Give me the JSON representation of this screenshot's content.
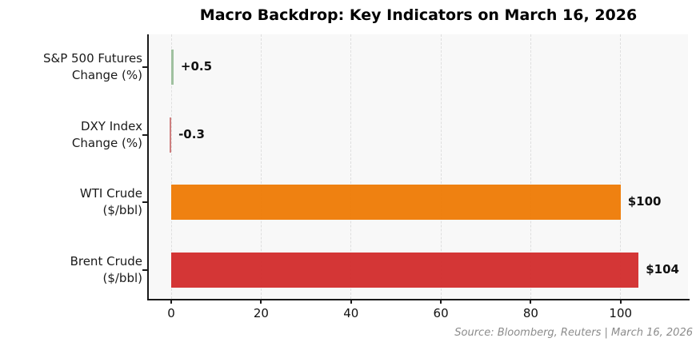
{
  "title": "Macro Backdrop: Key Indicators on March 16, 2026",
  "source_note": "Source: Bloomberg, Reuters | March 16, 2026",
  "chart_data": {
    "type": "bar",
    "orientation": "horizontal",
    "title": "Macro Backdrop: Key Indicators on March 16, 2026",
    "categories": [
      "S&P 500 Futures\nChange (%)",
      "DXY Index\nChange (%)",
      "WTI Crude\n($/bbl)",
      "Brent Crude\n($/bbl)"
    ],
    "values": [
      0.5,
      -0.3,
      100,
      104
    ],
    "value_labels": [
      "+0.5",
      "-0.3",
      "$100",
      "$104"
    ],
    "bar_colors": [
      "#9dbf9d",
      "#cc7a7a",
      "#ee7d09",
      "#d32f2f"
    ],
    "xticks": [
      0,
      20,
      40,
      60,
      80,
      100
    ],
    "xtick_labels": [
      "0",
      "20",
      "40",
      "60",
      "80",
      "100"
    ],
    "xlim": [
      -5,
      115
    ],
    "xlabel": "",
    "ylabel": "",
    "grid": "vertical-dashed",
    "legend": "none",
    "source": "Source: Bloomberg, Reuters | March 16, 2026",
    "colors": {
      "plot_background": "#f8f8f8",
      "page_background": "#ffffff",
      "gridline": "#dedede",
      "spine": "#1a1a1a",
      "value_label_text": "#111111",
      "source_text": "#8c8c8c"
    }
  }
}
